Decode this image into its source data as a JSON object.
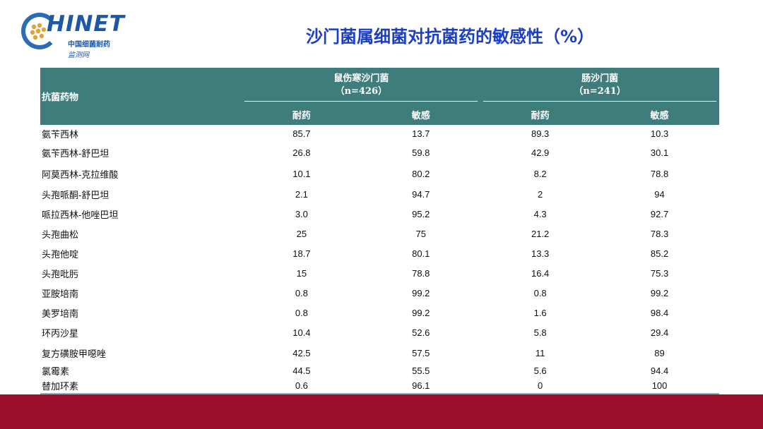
{
  "logo": {
    "name": "HINET",
    "line1": "中国细菌耐药",
    "line2": "监测网"
  },
  "title": "沙门菌属细菌对抗菌药的敏感性（%）",
  "table": {
    "drug_header": "抗菌药物",
    "groups": [
      {
        "name": "鼠伤寒沙门菌",
        "n": "（n=426）"
      },
      {
        "name": "肠沙门菌",
        "n": "（n=241）"
      }
    ],
    "sub_headers": [
      "耐药",
      "敏感",
      "耐药",
      "敏感"
    ],
    "rows": [
      {
        "drug": "氨苄西林",
        "values": [
          "85.7",
          "13.7",
          "89.3",
          "10.3"
        ]
      },
      {
        "drug": "氨苄西林-舒巴坦",
        "values": [
          "26.8",
          "59.8",
          "42.9",
          "30.1"
        ]
      },
      {
        "drug": "阿莫西林-克拉维酸",
        "values": [
          "10.1",
          "80.2",
          "8.2",
          "78.8"
        ]
      },
      {
        "drug": "头孢哌酮-舒巴坦",
        "values": [
          "2.1",
          "94.7",
          "2",
          "94"
        ]
      },
      {
        "drug": "哌拉西林-他唑巴坦",
        "values": [
          "3.0",
          "95.2",
          "4.3",
          "92.7"
        ]
      },
      {
        "drug": "头孢曲松",
        "values": [
          "25",
          "75",
          "21.2",
          "78.3"
        ]
      },
      {
        "drug": "头孢他啶",
        "values": [
          "18.7",
          "80.1",
          "13.3",
          "85.2"
        ]
      },
      {
        "drug": "头孢吡肟",
        "values": [
          "15",
          "78.8",
          "16.4",
          "75.3"
        ]
      },
      {
        "drug": "亚胺培南",
        "values": [
          "0.8",
          "99.2",
          "0.8",
          "99.2"
        ]
      },
      {
        "drug": "美罗培南",
        "values": [
          "0.8",
          "99.2",
          "1.6",
          "98.4"
        ]
      },
      {
        "drug": "环丙沙星",
        "values": [
          "10.4",
          "52.6",
          "5.8",
          "29.4"
        ]
      },
      {
        "drug": "复方磺胺甲噁唑",
        "values": [
          "42.5",
          "57.5",
          "11",
          "89"
        ]
      },
      {
        "drug": "氯霉素",
        "values": [
          "44.5",
          "55.5",
          "5.6",
          "94.4"
        ]
      },
      {
        "drug": "替加环素",
        "values": [
          "0.6",
          "96.1",
          "0",
          "100"
        ]
      }
    ]
  }
}
